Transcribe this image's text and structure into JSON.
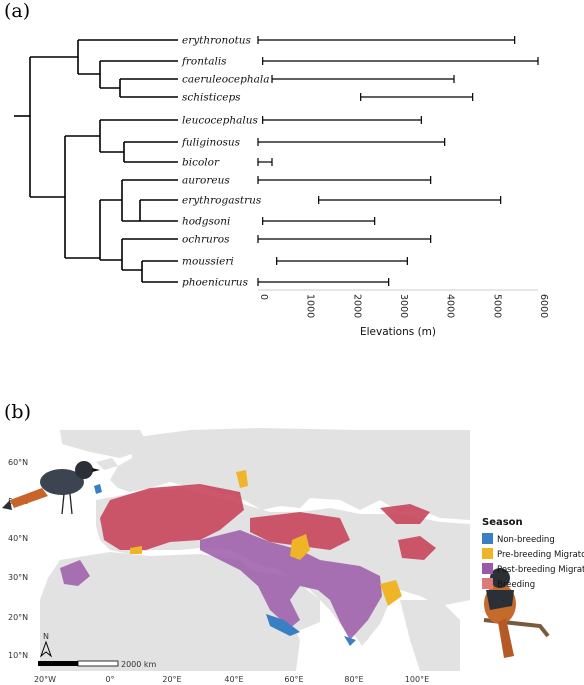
{
  "panel_a": {
    "label": "(a)",
    "taxa": [
      {
        "name": "erythronotus",
        "min": 0,
        "max": 5500
      },
      {
        "name": "frontalis",
        "min": 100,
        "max": 6000
      },
      {
        "name": "caeruleocephala",
        "min": 300,
        "max": 4200
      },
      {
        "name": "schisticeps",
        "min": 2200,
        "max": 4600
      },
      {
        "name": "leucocephalus",
        "min": 100,
        "max": 3500
      },
      {
        "name": "fuliginosus",
        "min": 0,
        "max": 4000
      },
      {
        "name": "bicolor",
        "min": 0,
        "max": 300
      },
      {
        "name": "auroreus",
        "min": 0,
        "max": 3700
      },
      {
        "name": "erythrogastrus",
        "min": 1300,
        "max": 5200
      },
      {
        "name": "hodgsoni",
        "min": 100,
        "max": 2500
      },
      {
        "name": "ochruros",
        "min": 0,
        "max": 3700
      },
      {
        "name": "moussieri",
        "min": 400,
        "max": 3200
      },
      {
        "name": "phoenicurus",
        "min": 0,
        "max": 2800
      }
    ],
    "x_ticks": [
      "0",
      "1000",
      "2000",
      "3000",
      "4000",
      "5000",
      "6000"
    ],
    "x_label": "Elevations (m)"
  },
  "chart_data": {
    "type": "range-bar",
    "categories": [
      "erythronotus",
      "frontalis",
      "caeruleocephala",
      "schisticeps",
      "leucocephalus",
      "fuliginosus",
      "bicolor",
      "auroreus",
      "erythrogastrus",
      "hodgsoni",
      "ochruros",
      "moussieri",
      "phoenicurus"
    ],
    "series": [
      {
        "values_min": [
          0,
          100,
          300,
          2200,
          100,
          0,
          0,
          0,
          1300,
          100,
          0,
          400,
          0
        ],
        "values_max": [
          5500,
          6000,
          4200,
          4600,
          3500,
          4000,
          300,
          3700,
          5200,
          2500,
          3700,
          3200,
          2800
        ]
      }
    ],
    "xlabel": "Elevations (m)",
    "xlim": [
      0,
      6000
    ]
  },
  "panel_b": {
    "label": "(b)",
    "lat_labels": [
      "60°N",
      "50°N",
      "40°N",
      "30°N",
      "20°N",
      "10°N"
    ],
    "lon_labels": [
      "20°W",
      "0°",
      "20°E",
      "40°E",
      "60°E",
      "80°E",
      "100°E"
    ],
    "scale_label": "2000 km",
    "north_label": "N",
    "legend": {
      "title": "Season",
      "items": [
        {
          "label": "Non-breeding",
          "color": "#3a7fc4"
        },
        {
          "label": "Pre-breeding Migratory",
          "color": "#f0b429"
        },
        {
          "label": "Post-breeding Migratory",
          "color": "#9b5aa8"
        },
        {
          "label": "Breeding",
          "color": "#e07a7a"
        }
      ]
    }
  }
}
